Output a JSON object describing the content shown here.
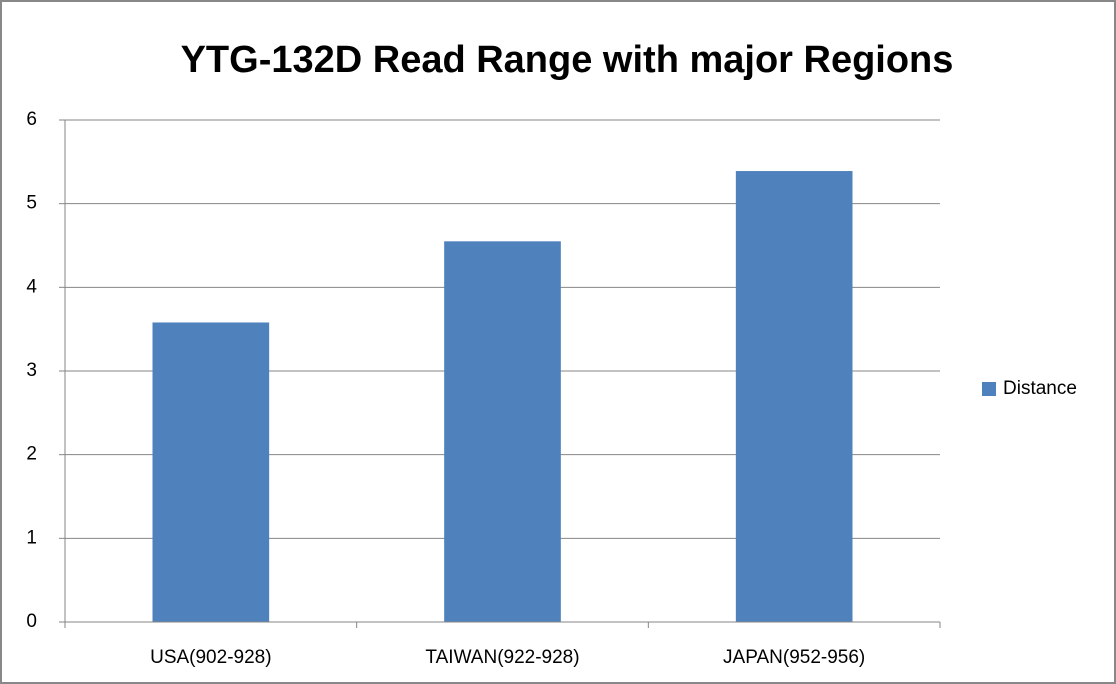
{
  "chart_data": {
    "type": "bar",
    "title": "YTG-132D Read Range with major Regions",
    "categories": [
      "USA(902-928)",
      "TAIWAN(922-928)",
      "JAPAN(952-956)"
    ],
    "series": [
      {
        "name": "Distance",
        "color": "#4f81bd",
        "values": [
          3.58,
          4.55,
          5.39
        ]
      }
    ],
    "ylim": [
      0,
      6
    ],
    "yticks": [
      0,
      1,
      2,
      3,
      4,
      5,
      6
    ],
    "grid": true,
    "legend": "right"
  }
}
